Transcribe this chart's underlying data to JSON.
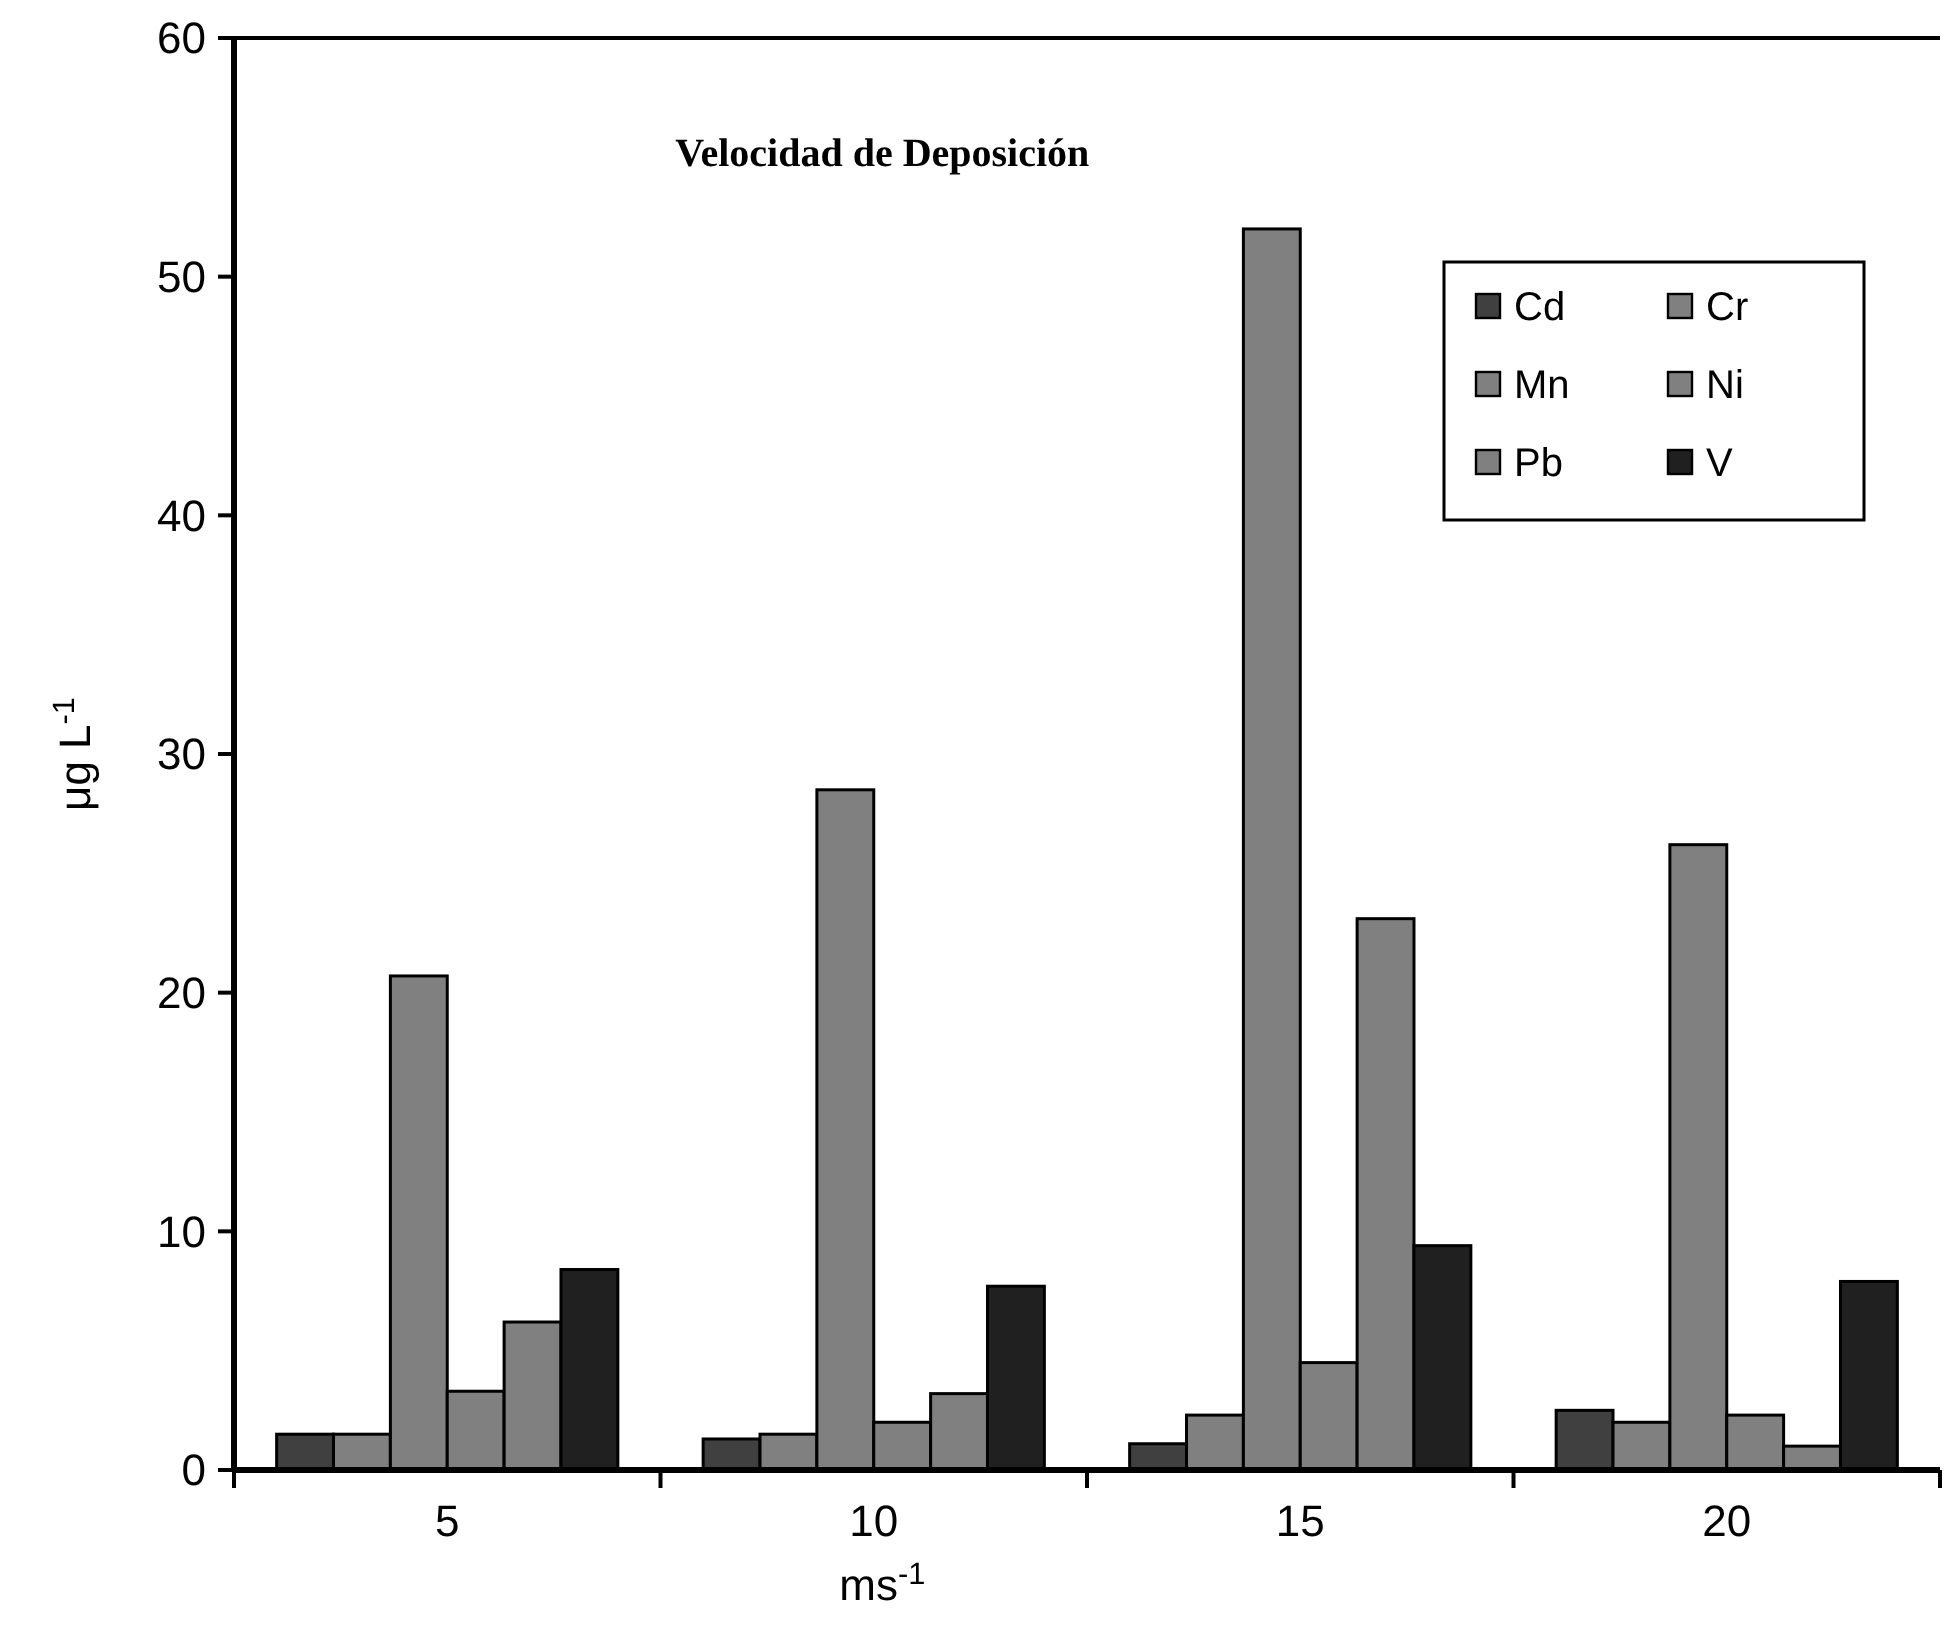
{
  "chart_data": {
    "type": "bar",
    "title": "Velocidad de Deposición",
    "xlabel": "ms$^{-1}$",
    "ylabel": "μg L$^{-1}$",
    "categories": [
      "5",
      "10",
      "15",
      "20"
    ],
    "series": [
      {
        "name": "Cd",
        "color": "#404040",
        "values": [
          1.5,
          1.3,
          1.1,
          2.5
        ]
      },
      {
        "name": "Cr",
        "color": "#808080",
        "values": [
          1.5,
          1.5,
          2.3,
          2.0
        ]
      },
      {
        "name": "Mn",
        "color": "#808080",
        "values": [
          20.7,
          28.5,
          52,
          26.2
        ]
      },
      {
        "name": "Ni",
        "color": "#808080",
        "values": [
          3.3,
          2.0,
          4.5,
          2.3
        ]
      },
      {
        "name": "Pb",
        "color": "#808080",
        "values": [
          6.2,
          3.2,
          23.1,
          1.0
        ]
      },
      {
        "name": "V",
        "color": "#202020",
        "values": [
          8.4,
          7.7,
          9.4,
          7.9
        ]
      }
    ],
    "ylim": [
      0,
      60
    ],
    "yticks": [
      0,
      10,
      20,
      30,
      40,
      50,
      60
    ],
    "grid": false,
    "legend": "top right"
  }
}
